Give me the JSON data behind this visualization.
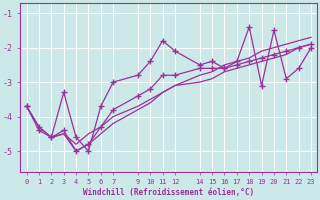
{
  "xlabel": "Windchill (Refroidissement éolien,°C)",
  "bg_color": "#cce8e8",
  "line_color": "#993399",
  "grid_color": "#ffffff",
  "xlim": [
    -0.5,
    23.5
  ],
  "ylim": [
    -5.6,
    -0.7
  ],
  "yticks": [
    -5,
    -4,
    -3,
    -2,
    -1
  ],
  "xticks": [
    0,
    1,
    2,
    3,
    4,
    5,
    6,
    7,
    9,
    10,
    11,
    12,
    14,
    15,
    16,
    17,
    18,
    19,
    20,
    21,
    22,
    23
  ],
  "line1": [
    [
      0,
      -3.7
    ],
    [
      1,
      -4.3
    ],
    [
      2,
      -4.6
    ],
    [
      3,
      -3.3
    ],
    [
      4,
      -4.6
    ],
    [
      5,
      -5.0
    ],
    [
      6,
      -3.7
    ],
    [
      7,
      -3.0
    ],
    [
      9,
      -2.8
    ],
    [
      10,
      -2.4
    ],
    [
      11,
      -1.8
    ],
    [
      12,
      -2.1
    ],
    [
      14,
      -2.5
    ],
    [
      15,
      -2.4
    ],
    [
      16,
      -2.6
    ],
    [
      17,
      -2.4
    ],
    [
      18,
      -1.4
    ],
    [
      19,
      -3.1
    ],
    [
      20,
      -1.5
    ],
    [
      21,
      -2.9
    ],
    [
      22,
      -2.6
    ],
    [
      23,
      -2.0
    ]
  ],
  "line2": [
    [
      0,
      -3.7
    ],
    [
      1,
      -4.3
    ],
    [
      2,
      -4.6
    ],
    [
      3,
      -4.5
    ],
    [
      4,
      -4.8
    ],
    [
      5,
      -4.5
    ],
    [
      6,
      -4.3
    ],
    [
      7,
      -4.0
    ],
    [
      9,
      -3.7
    ],
    [
      10,
      -3.5
    ],
    [
      11,
      -3.3
    ],
    [
      12,
      -3.1
    ],
    [
      14,
      -3.0
    ],
    [
      15,
      -2.9
    ],
    [
      16,
      -2.7
    ],
    [
      17,
      -2.6
    ],
    [
      18,
      -2.5
    ],
    [
      19,
      -2.4
    ],
    [
      20,
      -2.3
    ],
    [
      21,
      -2.2
    ],
    [
      22,
      -2.0
    ],
    [
      23,
      -1.9
    ]
  ],
  "line3": [
    [
      2,
      -4.6
    ],
    [
      3,
      -4.5
    ],
    [
      4,
      -5.0
    ],
    [
      5,
      -4.8
    ],
    [
      6,
      -4.5
    ],
    [
      7,
      -4.2
    ],
    [
      9,
      -3.8
    ],
    [
      10,
      -3.6
    ],
    [
      11,
      -3.3
    ],
    [
      12,
      -3.1
    ],
    [
      14,
      -2.8
    ],
    [
      15,
      -2.7
    ],
    [
      16,
      -2.5
    ],
    [
      17,
      -2.4
    ],
    [
      18,
      -2.3
    ],
    [
      19,
      -2.1
    ],
    [
      20,
      -2.0
    ],
    [
      21,
      -1.9
    ],
    [
      22,
      -1.8
    ],
    [
      23,
      -1.7
    ]
  ],
  "line4": [
    [
      0,
      -3.7
    ],
    [
      1,
      -4.4
    ],
    [
      2,
      -4.6
    ],
    [
      3,
      -4.4
    ],
    [
      4,
      -5.0
    ],
    [
      5,
      -4.8
    ],
    [
      6,
      -4.3
    ],
    [
      7,
      -3.8
    ],
    [
      9,
      -3.4
    ],
    [
      10,
      -3.2
    ],
    [
      11,
      -2.8
    ],
    [
      12,
      -2.8
    ],
    [
      14,
      -2.6
    ],
    [
      15,
      -2.6
    ],
    [
      16,
      -2.6
    ],
    [
      17,
      -2.5
    ],
    [
      18,
      -2.4
    ],
    [
      19,
      -2.3
    ],
    [
      20,
      -2.2
    ],
    [
      21,
      -2.1
    ],
    [
      22,
      -2.0
    ],
    [
      23,
      -1.9
    ]
  ]
}
